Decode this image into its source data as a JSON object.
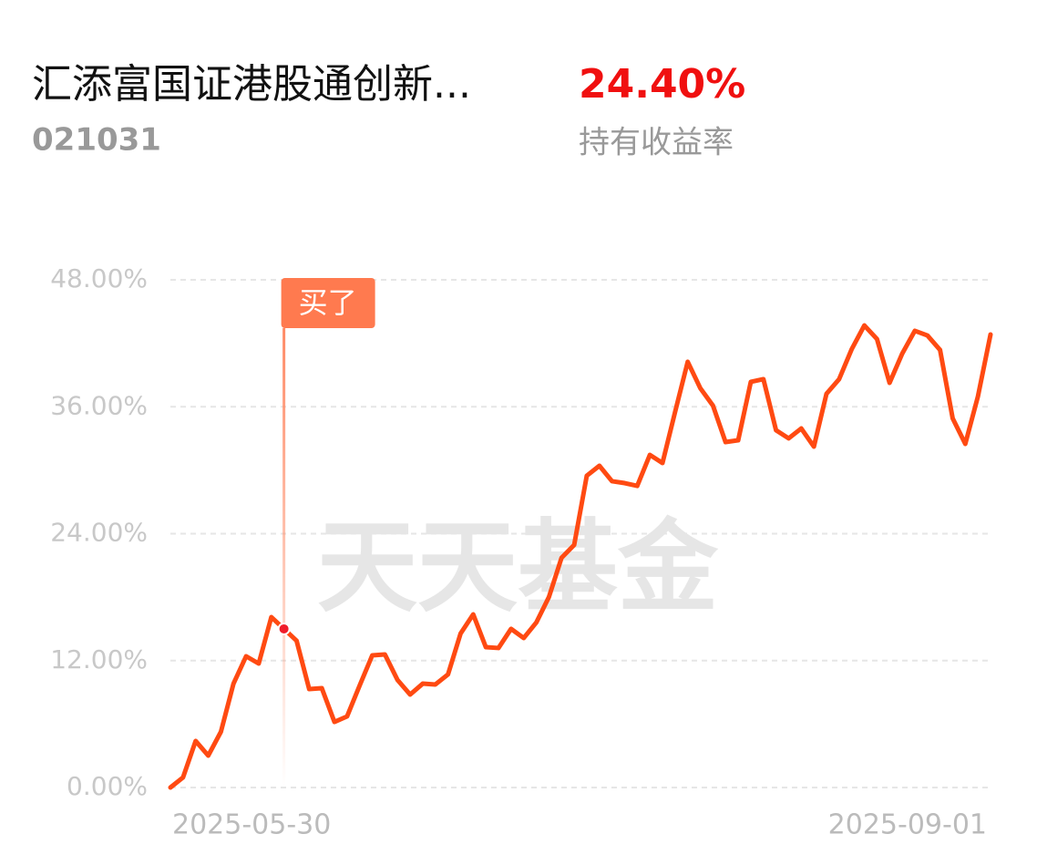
{
  "header": {
    "title": "汇添富国证港股通创新...",
    "code": "021031",
    "return_value": "24.40%",
    "return_label": "持有收益率"
  },
  "chart_data": {
    "type": "line",
    "color": "#ff4a12",
    "grid": true,
    "watermark": "天天基金",
    "categories": [
      "2025-05-30",
      null,
      null,
      null,
      null,
      null,
      null,
      null,
      null,
      null,
      null,
      null,
      null,
      null,
      null,
      null,
      null,
      null,
      null,
      null,
      null,
      null,
      null,
      null,
      null,
      null,
      null,
      null,
      null,
      null,
      null,
      null,
      null,
      null,
      null,
      null,
      null,
      null,
      null,
      null,
      null,
      null,
      null,
      null,
      null,
      null,
      null,
      null,
      null,
      null,
      null,
      null,
      null,
      null,
      null,
      null,
      null,
      null,
      null,
      null,
      null,
      null,
      null,
      null,
      null,
      "2025-09-01"
    ],
    "values": [
      0,
      0.95,
      4.4,
      3.02,
      5.26,
      9.82,
      12.41,
      11.72,
      16.11,
      15.0,
      13.88,
      9.31,
      9.39,
      6.2,
      6.72,
      9.65,
      12.5,
      12.58,
      10.17,
      8.79,
      9.82,
      9.74,
      10.69,
      14.56,
      16.37,
      13.27,
      13.19,
      15.0,
      14.13,
      15.6,
      18.01,
      21.72,
      22.93,
      29.48,
      30.42,
      28.96,
      28.78,
      28.52,
      31.45,
      30.68,
      35.51,
      40.25,
      37.75,
      36.11,
      32.66,
      32.83,
      38.35,
      38.61,
      33.78,
      33.01,
      33.95,
      32.23,
      37.23,
      38.61,
      41.45,
      43.69,
      42.4,
      38.26,
      41.02,
      43.18,
      42.74,
      41.37,
      34.9,
      32.49,
      36.97,
      42.83
    ],
    "ylim": [
      0,
      48
    ],
    "yticks": [
      {
        "value": 0,
        "label": "0.00%"
      },
      {
        "value": 12,
        "label": "12.00%"
      },
      {
        "value": 24,
        "label": "24.00%"
      },
      {
        "value": 36,
        "label": "36.00%"
      },
      {
        "value": 48,
        "label": "48.00%"
      }
    ],
    "annotations": [
      {
        "text": "买了",
        "index": 9
      }
    ]
  }
}
